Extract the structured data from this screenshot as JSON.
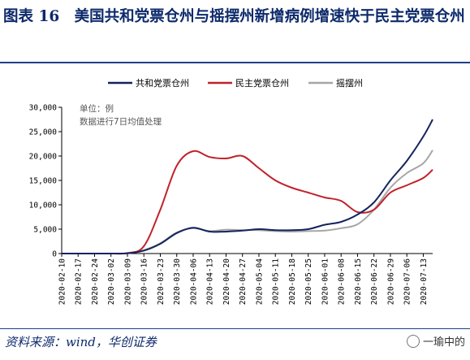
{
  "header": {
    "title": "图表 16　美国共和党票仓州与摇摆州新增病例增速快于民主党票仓州"
  },
  "footer": {
    "source": "资料来源：wind，华创证券",
    "watermark": "一瑜中的"
  },
  "chart_data": {
    "type": "line",
    "annotations": [
      "单位：例",
      "数据进行7日均值处理"
    ],
    "ylim": [
      0,
      30000
    ],
    "yticks": [
      "0",
      "5,000",
      "10,000",
      "15,000",
      "20,000",
      "25,000",
      "30,000"
    ],
    "ytick_values": [
      0,
      5000,
      10000,
      15000,
      20000,
      25000,
      30000
    ],
    "xticks": [
      "2020-02-10",
      "2020-02-17",
      "2020-02-24",
      "2020-03-02",
      "2020-03-09",
      "2020-03-16",
      "2020-03-23",
      "2020-03-30",
      "2020-04-06",
      "2020-04-13",
      "2020-04-20",
      "2020-04-27",
      "2020-05-04",
      "2020-05-11",
      "2020-05-18",
      "2020-05-25",
      "2020-06-01",
      "2020-06-08",
      "2020-06-15",
      "2020-06-22",
      "2020-06-29",
      "2020-07-06",
      "2020-07-13"
    ],
    "x": [
      "2020-02-10",
      "2020-02-17",
      "2020-02-24",
      "2020-03-02",
      "2020-03-09",
      "2020-03-16",
      "2020-03-23",
      "2020-03-30",
      "2020-04-06",
      "2020-04-13",
      "2020-04-20",
      "2020-04-27",
      "2020-05-04",
      "2020-05-11",
      "2020-05-18",
      "2020-05-25",
      "2020-06-01",
      "2020-06-08",
      "2020-06-15",
      "2020-06-22",
      "2020-06-29",
      "2020-07-06",
      "2020-07-13",
      "2020-07-17"
    ],
    "legend_position": "top",
    "grid": false,
    "series": [
      {
        "name": "共和党票仓州",
        "color": "#14235e",
        "values": [
          0,
          0,
          0,
          0,
          50,
          600,
          2000,
          4200,
          5300,
          4500,
          4500,
          4700,
          5000,
          4800,
          4800,
          5000,
          5900,
          6500,
          8000,
          10500,
          15000,
          19000,
          24000,
          27500
        ]
      },
      {
        "name": "民主党票仓州",
        "color": "#c0222a",
        "values": [
          0,
          0,
          0,
          0,
          100,
          1500,
          9000,
          18000,
          21000,
          19800,
          19500,
          20000,
          17500,
          15000,
          13500,
          12500,
          11500,
          10800,
          8500,
          9000,
          12500,
          14000,
          15500,
          17200
        ]
      },
      {
        "name": "摇摆州",
        "color": "#a6a6a6",
        "values": [
          0,
          0,
          0,
          0,
          60,
          700,
          2100,
          4300,
          5200,
          4600,
          4900,
          4800,
          4800,
          4600,
          4500,
          4600,
          4700,
          5200,
          6000,
          9000,
          13500,
          16500,
          18500,
          21200
        ]
      }
    ]
  }
}
